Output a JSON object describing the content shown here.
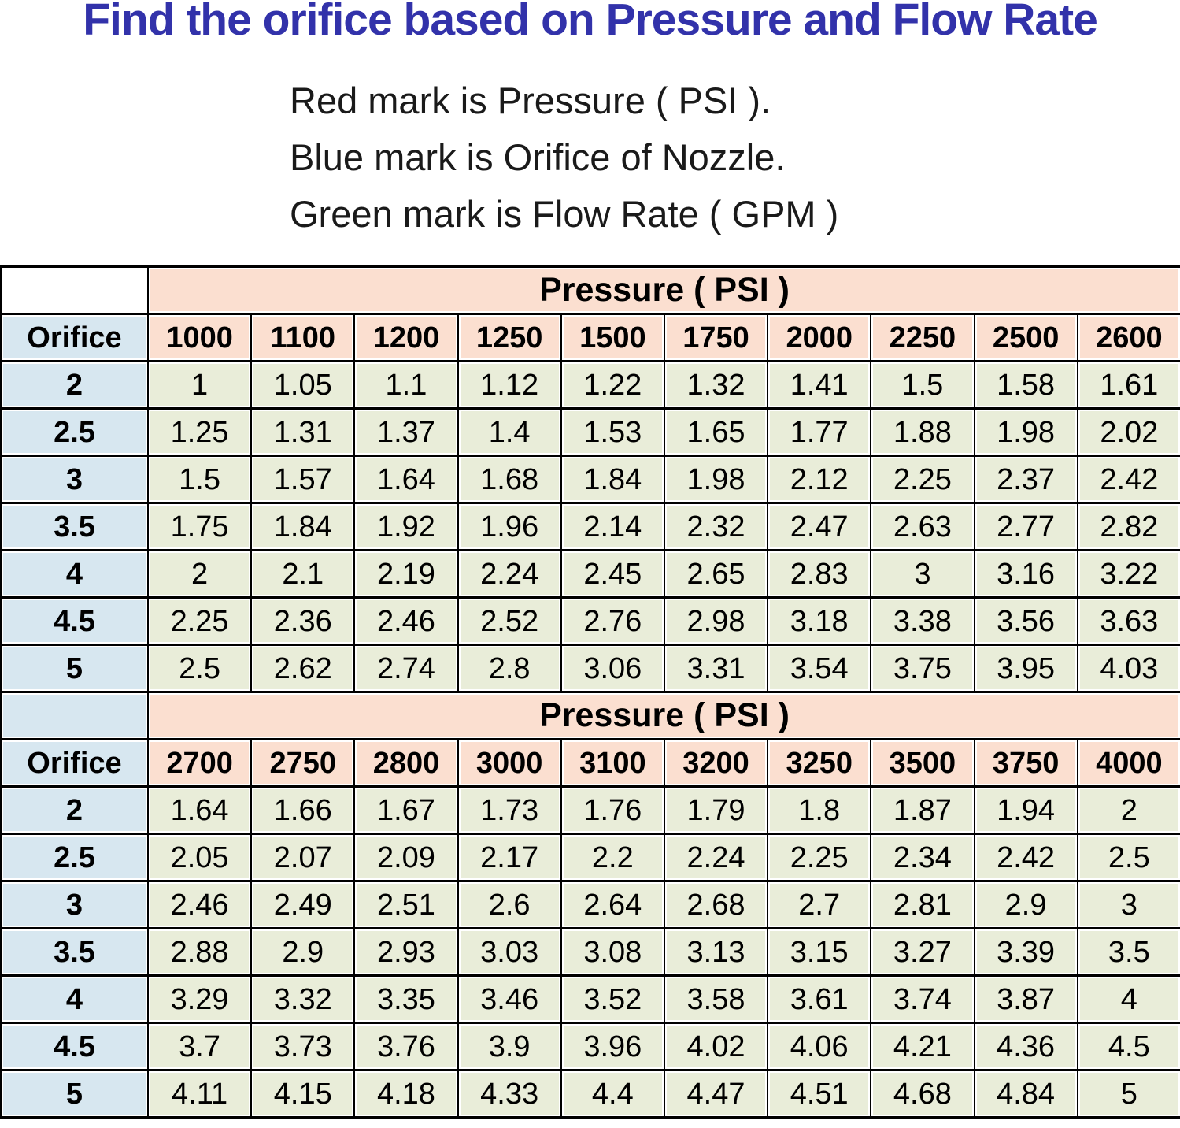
{
  "title": "Find the orifice based on Pressure and Flow Rate",
  "legend": [
    {
      "text": "Red mark is Pressure ( PSI )."
    },
    {
      "text": "Blue mark is Orifice of Nozzle."
    },
    {
      "text": "Green mark is Flow Rate ( GPM )"
    }
  ],
  "colors": {
    "title_blue": "#3232aa",
    "pressure_mark_red": "#fbdfd0",
    "orifice_mark_blue": "#d7e7f0",
    "flow_rate_mark_green": "#e9edd9",
    "border_black": "#000000"
  },
  "chart_data": [
    {
      "type": "table",
      "title": "Pressure ( PSI )",
      "row_header": "Orifice",
      "columns": [
        "1000",
        "1100",
        "1200",
        "1250",
        "1500",
        "1750",
        "2000",
        "2250",
        "2500",
        "2600"
      ],
      "rows": [
        {
          "orifice": "2",
          "values": [
            "1",
            "1.05",
            "1.1",
            "1.12",
            "1.22",
            "1.32",
            "1.41",
            "1.5",
            "1.58",
            "1.61"
          ]
        },
        {
          "orifice": "2.5",
          "values": [
            "1.25",
            "1.31",
            "1.37",
            "1.4",
            "1.53",
            "1.65",
            "1.77",
            "1.88",
            "1.98",
            "2.02"
          ]
        },
        {
          "orifice": "3",
          "values": [
            "1.5",
            "1.57",
            "1.64",
            "1.68",
            "1.84",
            "1.98",
            "2.12",
            "2.25",
            "2.37",
            "2.42"
          ]
        },
        {
          "orifice": "3.5",
          "values": [
            "1.75",
            "1.84",
            "1.92",
            "1.96",
            "2.14",
            "2.32",
            "2.47",
            "2.63",
            "2.77",
            "2.82"
          ]
        },
        {
          "orifice": "4",
          "values": [
            "2",
            "2.1",
            "2.19",
            "2.24",
            "2.45",
            "2.65",
            "2.83",
            "3",
            "3.16",
            "3.22"
          ]
        },
        {
          "orifice": "4.5",
          "values": [
            "2.25",
            "2.36",
            "2.46",
            "2.52",
            "2.76",
            "2.98",
            "3.18",
            "3.38",
            "3.56",
            "3.63"
          ]
        },
        {
          "orifice": "5",
          "values": [
            "2.5",
            "2.62",
            "2.74",
            "2.8",
            "3.06",
            "3.31",
            "3.54",
            "3.75",
            "3.95",
            "4.03"
          ]
        }
      ]
    },
    {
      "type": "table",
      "title": "Pressure ( PSI )",
      "row_header": "Orifice",
      "columns": [
        "2700",
        "2750",
        "2800",
        "3000",
        "3100",
        "3200",
        "3250",
        "3500",
        "3750",
        "4000"
      ],
      "rows": [
        {
          "orifice": "2",
          "values": [
            "1.64",
            "1.66",
            "1.67",
            "1.73",
            "1.76",
            "1.79",
            "1.8",
            "1.87",
            "1.94",
            "2"
          ]
        },
        {
          "orifice": "2.5",
          "values": [
            "2.05",
            "2.07",
            "2.09",
            "2.17",
            "2.2",
            "2.24",
            "2.25",
            "2.34",
            "2.42",
            "2.5"
          ]
        },
        {
          "orifice": "3",
          "values": [
            "2.46",
            "2.49",
            "2.51",
            "2.6",
            "2.64",
            "2.68",
            "2.7",
            "2.81",
            "2.9",
            "3"
          ]
        },
        {
          "orifice": "3.5",
          "values": [
            "2.88",
            "2.9",
            "2.93",
            "3.03",
            "3.08",
            "3.13",
            "3.15",
            "3.27",
            "3.39",
            "3.5"
          ]
        },
        {
          "orifice": "4",
          "values": [
            "3.29",
            "3.32",
            "3.35",
            "3.46",
            "3.52",
            "3.58",
            "3.61",
            "3.74",
            "3.87",
            "4"
          ]
        },
        {
          "orifice": "4.5",
          "values": [
            "3.7",
            "3.73",
            "3.76",
            "3.9",
            "3.96",
            "4.02",
            "4.06",
            "4.21",
            "4.36",
            "4.5"
          ]
        },
        {
          "orifice": "5",
          "values": [
            "4.11",
            "4.15",
            "4.18",
            "4.33",
            "4.4",
            "4.47",
            "4.51",
            "4.68",
            "4.84",
            "5"
          ]
        }
      ]
    }
  ]
}
